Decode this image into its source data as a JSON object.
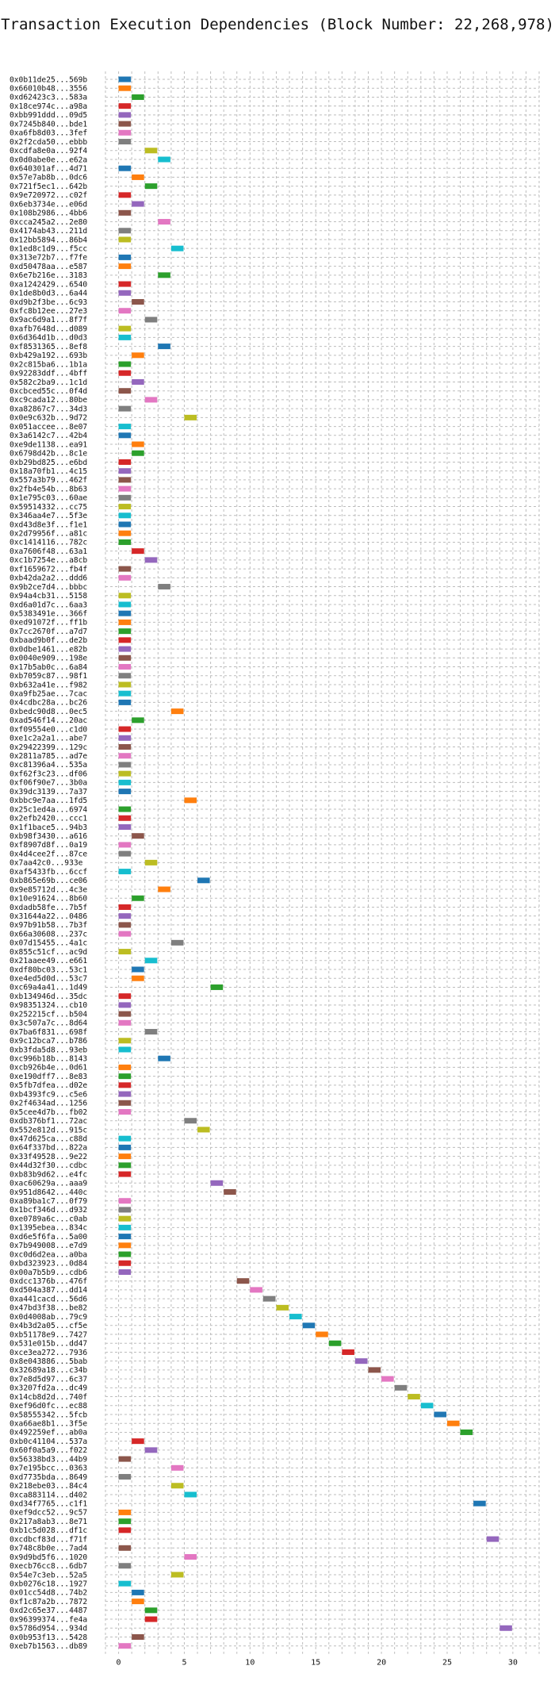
{
  "chart_data": {
    "type": "gantt",
    "title": "Transaction Execution Dependencies (Block Number: 22,268,978)",
    "xlabel": "",
    "ylabel": "",
    "xlim": [
      -1,
      32
    ],
    "xticks": [
      0,
      5,
      10,
      15,
      20,
      25,
      30
    ],
    "grid": true,
    "grid_style": "dashed",
    "palette": [
      "#1f77b4",
      "#ff7f0e",
      "#2ca02c",
      "#d62728",
      "#9467bd",
      "#8c564b",
      "#e377c2",
      "#7f7f7f",
      "#bcbd22",
      "#17becf"
    ],
    "transactions": [
      {
        "label": "0x0b11de25...569b",
        "start": 0,
        "end": 1
      },
      {
        "label": "0x66010b48...3556",
        "start": 0,
        "end": 1
      },
      {
        "label": "0xd62423c3...583a",
        "start": 1,
        "end": 2
      },
      {
        "label": "0x18ce974c...a98a",
        "start": 0,
        "end": 1
      },
      {
        "label": "0xbb991ddd...09d5",
        "start": 0,
        "end": 1
      },
      {
        "label": "0x7245b840...bde1",
        "start": 0,
        "end": 1
      },
      {
        "label": "0xa6fb8d03...3fef",
        "start": 0,
        "end": 1
      },
      {
        "label": "0x2f2cda50...ebbb",
        "start": 0,
        "end": 1
      },
      {
        "label": "0xcdfa8e0a...92f4",
        "start": 2,
        "end": 3
      },
      {
        "label": "0x0d0abe0e...e62a",
        "start": 3,
        "end": 4
      },
      {
        "label": "0x640301af...4d71",
        "start": 0,
        "end": 1
      },
      {
        "label": "0x57e7ab8b...0dc6",
        "start": 1,
        "end": 2
      },
      {
        "label": "0x721f5ec1...642b",
        "start": 2,
        "end": 3
      },
      {
        "label": "0x9e720972...c02f",
        "start": 0,
        "end": 1
      },
      {
        "label": "0x6eb3734e...e06d",
        "start": 1,
        "end": 2
      },
      {
        "label": "0x108b2986...4bb6",
        "start": 0,
        "end": 1
      },
      {
        "label": "0xcca245a2...2e80",
        "start": 3,
        "end": 4
      },
      {
        "label": "0x4174ab43...211d",
        "start": 0,
        "end": 1
      },
      {
        "label": "0x12bb5894...86b4",
        "start": 0,
        "end": 1
      },
      {
        "label": "0x1ed8c1d9...f5cc",
        "start": 4,
        "end": 5
      },
      {
        "label": "0x313e72b7...f7fe",
        "start": 0,
        "end": 1
      },
      {
        "label": "0xd50478aa...e587",
        "start": 0,
        "end": 1
      },
      {
        "label": "0x6e7b216e...3183",
        "start": 3,
        "end": 4
      },
      {
        "label": "0xa1242429...6540",
        "start": 0,
        "end": 1
      },
      {
        "label": "0x1de8b0d3...6a44",
        "start": 0,
        "end": 1
      },
      {
        "label": "0xd9b2f3be...6c93",
        "start": 1,
        "end": 2
      },
      {
        "label": "0xfc8b12ee...27e3",
        "start": 0,
        "end": 1
      },
      {
        "label": "0x9ac6d9a1...8f7f",
        "start": 2,
        "end": 3
      },
      {
        "label": "0xafb7648d...d089",
        "start": 0,
        "end": 1
      },
      {
        "label": "0x6d364d1b...d0d3",
        "start": 0,
        "end": 1
      },
      {
        "label": "0xf8531365...8ef8",
        "start": 3,
        "end": 4
      },
      {
        "label": "0xb429a192...693b",
        "start": 1,
        "end": 2
      },
      {
        "label": "0x2c815ba6...1b1a",
        "start": 0,
        "end": 1
      },
      {
        "label": "0x92283ddf...4bff",
        "start": 0,
        "end": 1
      },
      {
        "label": "0x582c2ba9...1c1d",
        "start": 1,
        "end": 2
      },
      {
        "label": "0xcbced55c...0f4d",
        "start": 0,
        "end": 1
      },
      {
        "label": "0xc9cada12...80be",
        "start": 2,
        "end": 3
      },
      {
        "label": "0xa82867c7...34d3",
        "start": 0,
        "end": 1
      },
      {
        "label": "0x0e9c632b...9d72",
        "start": 5,
        "end": 6
      },
      {
        "label": "0x051accee...8e07",
        "start": 0,
        "end": 1
      },
      {
        "label": "0x3a6142c7...42b4",
        "start": 0,
        "end": 1
      },
      {
        "label": "0xe9de1138...ea91",
        "start": 1,
        "end": 2
      },
      {
        "label": "0x6798d42b...8c1e",
        "start": 1,
        "end": 2
      },
      {
        "label": "0xb29bd825...e6bd",
        "start": 0,
        "end": 1
      },
      {
        "label": "0x18a70fb1...4c15",
        "start": 0,
        "end": 1
      },
      {
        "label": "0x557a3b79...462f",
        "start": 0,
        "end": 1
      },
      {
        "label": "0x2fb4e54b...8b63",
        "start": 0,
        "end": 1
      },
      {
        "label": "0x1e795c03...60ae",
        "start": 0,
        "end": 1
      },
      {
        "label": "0x59514332...cc75",
        "start": 0,
        "end": 1
      },
      {
        "label": "0x346aa4e7...5f3e",
        "start": 0,
        "end": 1
      },
      {
        "label": "0xd43d8e3f...f1e1",
        "start": 0,
        "end": 1
      },
      {
        "label": "0x2d79956f...a81c",
        "start": 0,
        "end": 1
      },
      {
        "label": "0xc1414116...782c",
        "start": 0,
        "end": 1
      },
      {
        "label": "0xa7606f48...63a1",
        "start": 1,
        "end": 2
      },
      {
        "label": "0xc1b7254e...a8cb",
        "start": 2,
        "end": 3
      },
      {
        "label": "0xf1659672...fb4f",
        "start": 0,
        "end": 1
      },
      {
        "label": "0xb42da2a2...ddd6",
        "start": 0,
        "end": 1
      },
      {
        "label": "0x9b2ce7d4...bbbc",
        "start": 3,
        "end": 4
      },
      {
        "label": "0x94a4cb31...5158",
        "start": 0,
        "end": 1
      },
      {
        "label": "0xd6a01d7c...6aa3",
        "start": 0,
        "end": 1
      },
      {
        "label": "0x5383491e...366f",
        "start": 0,
        "end": 1
      },
      {
        "label": "0xed91072f...ff1b",
        "start": 0,
        "end": 1
      },
      {
        "label": "0x7cc2670f...a7d7",
        "start": 0,
        "end": 1
      },
      {
        "label": "0xbaad9b0f...de2b",
        "start": 0,
        "end": 1
      },
      {
        "label": "0x0dbe1461...e82b",
        "start": 0,
        "end": 1
      },
      {
        "label": "0x0040e909...198e",
        "start": 0,
        "end": 1
      },
      {
        "label": "0x17b5ab0c...6a84",
        "start": 0,
        "end": 1
      },
      {
        "label": "0xb7059c87...98f1",
        "start": 0,
        "end": 1
      },
      {
        "label": "0xb632a41e...f982",
        "start": 0,
        "end": 1
      },
      {
        "label": "0xa9fb25ae...7cac",
        "start": 0,
        "end": 1
      },
      {
        "label": "0x4cdbc28a...bc26",
        "start": 0,
        "end": 1
      },
      {
        "label": "0xbedc90d8...0ec5",
        "start": 4,
        "end": 5
      },
      {
        "label": "0xad546f14...20ac",
        "start": 1,
        "end": 2
      },
      {
        "label": "0xf09554e0...c1d0",
        "start": 0,
        "end": 1
      },
      {
        "label": "0xe1c2a2a1...abe7",
        "start": 0,
        "end": 1
      },
      {
        "label": "0x29422399...129c",
        "start": 0,
        "end": 1
      },
      {
        "label": "0x2811a785...ad7e",
        "start": 0,
        "end": 1
      },
      {
        "label": "0xc81396a4...535a",
        "start": 0,
        "end": 1
      },
      {
        "label": "0xf62f3c23...df06",
        "start": 0,
        "end": 1
      },
      {
        "label": "0xf06f90e7...3b0a",
        "start": 0,
        "end": 1
      },
      {
        "label": "0x39dc3139...7a37",
        "start": 0,
        "end": 1
      },
      {
        "label": "0xbbc9e7aa...1fd5",
        "start": 5,
        "end": 6
      },
      {
        "label": "0x25c1ed4a...6974",
        "start": 0,
        "end": 1
      },
      {
        "label": "0x2efb2420...ccc1",
        "start": 0,
        "end": 1
      },
      {
        "label": "0x1f1bace5...94b3",
        "start": 0,
        "end": 1
      },
      {
        "label": "0xb98f3430...a616",
        "start": 1,
        "end": 2
      },
      {
        "label": "0xf8907d8f...0a19",
        "start": 0,
        "end": 1
      },
      {
        "label": "0x4d4cee2f...87ce",
        "start": 0,
        "end": 1
      },
      {
        "label": "0x7aa42c0...933e",
        "start": 2,
        "end": 3
      },
      {
        "label": "0xaf5433fb...6ccf",
        "start": 0,
        "end": 1
      },
      {
        "label": "0xb865e69b...ce06",
        "start": 6,
        "end": 7
      },
      {
        "label": "0x9e85712d...4c3e",
        "start": 3,
        "end": 4
      },
      {
        "label": "0x10e91624...8b60",
        "start": 1,
        "end": 2
      },
      {
        "label": "0xdadb58fe...7b5f",
        "start": 0,
        "end": 1
      },
      {
        "label": "0x31644a22...0486",
        "start": 0,
        "end": 1
      },
      {
        "label": "0x97b91b58...7b3f",
        "start": 0,
        "end": 1
      },
      {
        "label": "0x66a30608...237c",
        "start": 0,
        "end": 1
      },
      {
        "label": "0x07d15455...4a1c",
        "start": 4,
        "end": 5
      },
      {
        "label": "0x855c51cf...ac9d",
        "start": 0,
        "end": 1
      },
      {
        "label": "0x21aaee49...e661",
        "start": 2,
        "end": 3
      },
      {
        "label": "0xdf80bc03...53c1",
        "start": 1,
        "end": 2
      },
      {
        "label": "0xe4ed5d0d...53c7",
        "start": 1,
        "end": 2
      },
      {
        "label": "0xc69a4a41...1d49",
        "start": 7,
        "end": 8
      },
      {
        "label": "0xb134946d...35dc",
        "start": 0,
        "end": 1
      },
      {
        "label": "0x98351324...cb10",
        "start": 0,
        "end": 1
      },
      {
        "label": "0x252215cf...b504",
        "start": 0,
        "end": 1
      },
      {
        "label": "0x3c507a7c...8d64",
        "start": 0,
        "end": 1
      },
      {
        "label": "0x7ba6f831...698f",
        "start": 2,
        "end": 3
      },
      {
        "label": "0x9c12bca7...b786",
        "start": 0,
        "end": 1
      },
      {
        "label": "0xb3fda5d8...93eb",
        "start": 0,
        "end": 1
      },
      {
        "label": "0xc996b18b...8143",
        "start": 3,
        "end": 4
      },
      {
        "label": "0xcb926b4e...0d61",
        "start": 0,
        "end": 1
      },
      {
        "label": "0xe190dff7...8e83",
        "start": 0,
        "end": 1
      },
      {
        "label": "0x5fb7dfea...d02e",
        "start": 0,
        "end": 1
      },
      {
        "label": "0xb4393fc9...c5e6",
        "start": 0,
        "end": 1
      },
      {
        "label": "0x2f4634ad...1256",
        "start": 0,
        "end": 1
      },
      {
        "label": "0x5cee4d7b...fb02",
        "start": 0,
        "end": 1
      },
      {
        "label": "0xdb376bf1...72ac",
        "start": 5,
        "end": 6
      },
      {
        "label": "0x552e812d...915c",
        "start": 6,
        "end": 7
      },
      {
        "label": "0x47d625ca...c88d",
        "start": 0,
        "end": 1
      },
      {
        "label": "0x64f337bd...822a",
        "start": 0,
        "end": 1
      },
      {
        "label": "0x33f49528...9e22",
        "start": 0,
        "end": 1
      },
      {
        "label": "0x44d32f30...cdbc",
        "start": 0,
        "end": 1
      },
      {
        "label": "0xb83b9d62...e4fc",
        "start": 0,
        "end": 1
      },
      {
        "label": "0xac60629a...aaa9",
        "start": 7,
        "end": 8
      },
      {
        "label": "0x951d8642...440c",
        "start": 8,
        "end": 9
      },
      {
        "label": "0xa89ba1c7...0f79",
        "start": 0,
        "end": 1
      },
      {
        "label": "0x1bcf346d...d932",
        "start": 0,
        "end": 1
      },
      {
        "label": "0xe0789a6c...c0ab",
        "start": 0,
        "end": 1
      },
      {
        "label": "0x1395ebea...834c",
        "start": 0,
        "end": 1
      },
      {
        "label": "0xd6e5f6fa...5a00",
        "start": 0,
        "end": 1
      },
      {
        "label": "0x7b949008...e7d9",
        "start": 0,
        "end": 1
      },
      {
        "label": "0xc0d6d2ea...a0ba",
        "start": 0,
        "end": 1
      },
      {
        "label": "0xbd323923...0d84",
        "start": 0,
        "end": 1
      },
      {
        "label": "0x00a7b5b9...cdb6",
        "start": 0,
        "end": 1
      },
      {
        "label": "0xdcc1376b...476f",
        "start": 9,
        "end": 10
      },
      {
        "label": "0xd504a387...dd14",
        "start": 10,
        "end": 11
      },
      {
        "label": "0xa441cacd...56d6",
        "start": 11,
        "end": 12
      },
      {
        "label": "0x47bd3f38...be82",
        "start": 12,
        "end": 13
      },
      {
        "label": "0x0d4008ab...79c9",
        "start": 13,
        "end": 14
      },
      {
        "label": "0x4b3d2a05...cf5e",
        "start": 14,
        "end": 15
      },
      {
        "label": "0xb51178e9...7427",
        "start": 15,
        "end": 16
      },
      {
        "label": "0x531e015b...dd47",
        "start": 16,
        "end": 17
      },
      {
        "label": "0xce3ea272...7936",
        "start": 17,
        "end": 18
      },
      {
        "label": "0x8e043886...5bab",
        "start": 18,
        "end": 19
      },
      {
        "label": "0x32689a18...c34b",
        "start": 19,
        "end": 20
      },
      {
        "label": "0x7e8d5d97...6c37",
        "start": 20,
        "end": 21
      },
      {
        "label": "0x3207fd2a...dc49",
        "start": 21,
        "end": 22
      },
      {
        "label": "0x14cb8d2d...740f",
        "start": 22,
        "end": 23
      },
      {
        "label": "0xef96d0fc...ec88",
        "start": 23,
        "end": 24
      },
      {
        "label": "0x58555342...5fcb",
        "start": 24,
        "end": 25
      },
      {
        "label": "0xa66ae8b1...3f5e",
        "start": 25,
        "end": 26
      },
      {
        "label": "0x492259ef...ab0a",
        "start": 26,
        "end": 27
      },
      {
        "label": "0xb0c41104...537a",
        "start": 1,
        "end": 2
      },
      {
        "label": "0x60f0a5a9...f022",
        "start": 2,
        "end": 3
      },
      {
        "label": "0x56338bd3...44b9",
        "start": 0,
        "end": 1
      },
      {
        "label": "0x7e195bcc...0363",
        "start": 4,
        "end": 5
      },
      {
        "label": "0xd7735bda...8649",
        "start": 0,
        "end": 1
      },
      {
        "label": "0x218ebe03...84c4",
        "start": 4,
        "end": 5
      },
      {
        "label": "0xca883114...d402",
        "start": 5,
        "end": 6
      },
      {
        "label": "0xd34f7765...c1f1",
        "start": 27,
        "end": 28
      },
      {
        "label": "0xef9dcc52...9c57",
        "start": 0,
        "end": 1
      },
      {
        "label": "0x217a8ab3...8e71",
        "start": 0,
        "end": 1
      },
      {
        "label": "0xb1c5d028...df1c",
        "start": 0,
        "end": 1
      },
      {
        "label": "0xcdbcf83d...f71f",
        "start": 28,
        "end": 29
      },
      {
        "label": "0x748c8b0e...7ad4",
        "start": 0,
        "end": 1
      },
      {
        "label": "0x9d9bd5f6...1020",
        "start": 5,
        "end": 6
      },
      {
        "label": "0xecb76cc8...6db7",
        "start": 0,
        "end": 1
      },
      {
        "label": "0x54e7c3eb...52a5",
        "start": 4,
        "end": 5
      },
      {
        "label": "0xb0276c18...1927",
        "start": 0,
        "end": 1
      },
      {
        "label": "0x01cc54d8...74b2",
        "start": 1,
        "end": 2
      },
      {
        "label": "0xf1c87a2b...7872",
        "start": 1,
        "end": 2
      },
      {
        "label": "0xd2c65e37...4487",
        "start": 2,
        "end": 3
      },
      {
        "label": "0x96399374...fe4a",
        "start": 2,
        "end": 3
      },
      {
        "label": "0x5786d954...934d",
        "start": 29,
        "end": 30
      },
      {
        "label": "0x0b953f13...5428",
        "start": 1,
        "end": 2
      },
      {
        "label": "0xeb7b1563...db89",
        "start": 0,
        "end": 1
      }
    ]
  }
}
